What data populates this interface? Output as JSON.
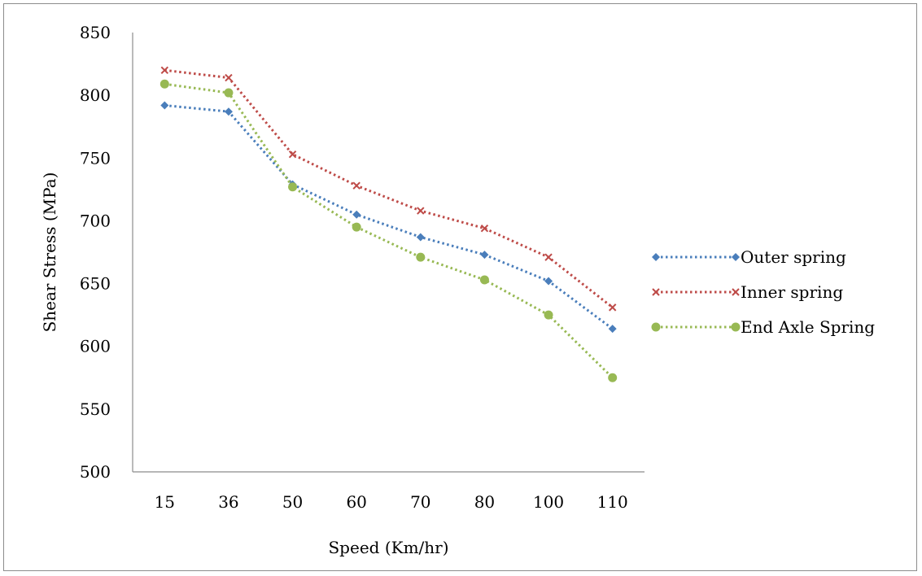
{
  "chart_data": {
    "type": "line",
    "xlabel": "Speed (Km/hr)",
    "ylabel": "Shear Stress (MPa)",
    "ylim": [
      500,
      850
    ],
    "yticks": [
      500,
      550,
      600,
      650,
      700,
      750,
      800,
      850
    ],
    "categories": [
      "15",
      "36",
      "50",
      "60",
      "70",
      "80",
      "100",
      "110"
    ],
    "grid": false,
    "legend_position": "right",
    "series": [
      {
        "name": "Outer spring",
        "color": "#4a7ebb",
        "marker": "diamond",
        "line_style": "dotted",
        "values": [
          792,
          787,
          729,
          705,
          687,
          673,
          652,
          614
        ]
      },
      {
        "name": "Inner spring",
        "color": "#be4b48",
        "marker": "x",
        "line_style": "dotted",
        "values": [
          820,
          814,
          753,
          728,
          708,
          694,
          671,
          631
        ]
      },
      {
        "name": "End Axle Spring",
        "color": "#98b954",
        "marker": "circle",
        "line_style": "dotted",
        "values": [
          809,
          802,
          727,
          695,
          671,
          653,
          625,
          575
        ]
      }
    ]
  }
}
